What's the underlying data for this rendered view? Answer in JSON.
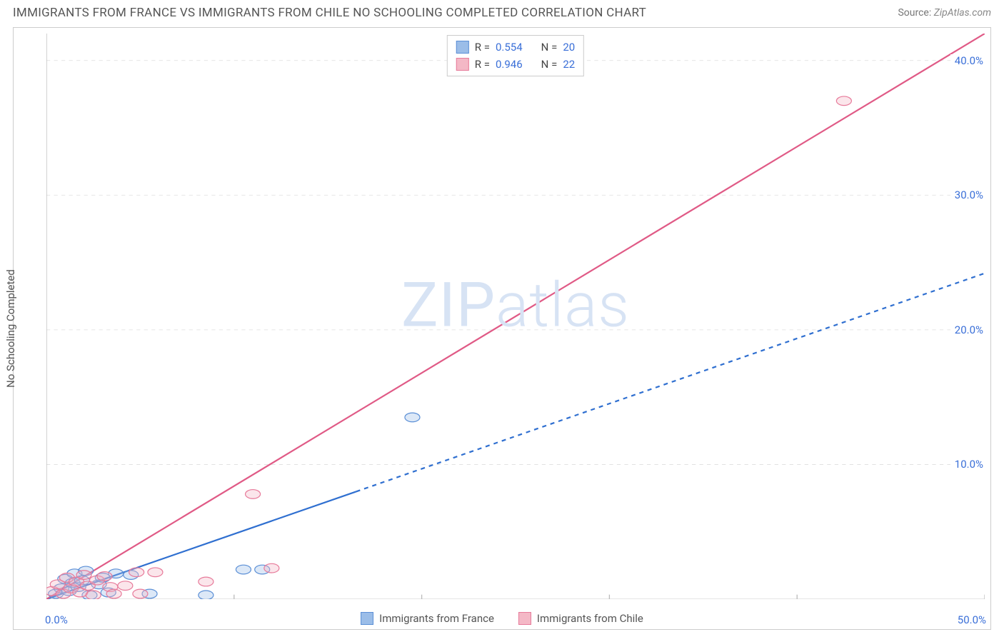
{
  "header": {
    "title": "IMMIGRANTS FROM FRANCE VS IMMIGRANTS FROM CHILE NO SCHOOLING COMPLETED CORRELATION CHART",
    "source_label": "Source:",
    "source_value": "ZipAtlas.com"
  },
  "chart": {
    "type": "scatter",
    "ylabel": "No Schooling Completed",
    "watermark": "ZIPatlas",
    "background_color": "#ffffff",
    "border_color": "#cccccc",
    "grid_color": "#dddddd",
    "grid_dash": "4 4",
    "xlim": [
      0,
      50
    ],
    "ylim": [
      0,
      42
    ],
    "xticks": [
      0,
      10,
      20,
      30,
      40,
      50
    ],
    "xtick_labels_shown": {
      "0": "0.0%",
      "50": "50.0%"
    },
    "yticks": [
      10,
      20,
      30,
      40
    ],
    "ytick_labels": [
      "10.0%",
      "20.0%",
      "30.0%",
      "40.0%"
    ],
    "tick_label_color": "#3a6fd8",
    "tick_fontsize": 15,
    "marker_radius": 8,
    "marker_stroke_width": 1.2,
    "marker_fill_opacity": 0.35,
    "series": [
      {
        "id": "france",
        "label": "Immigrants from France",
        "legend_label": "Immigrants from France",
        "color_fill": "#9bbde8",
        "color_stroke": "#5b8fd6",
        "line_color": "#2f6fd0",
        "line_width": 2.2,
        "line_solid_until_x": 16.5,
        "line_dash_after": "6 6",
        "trend": {
          "x1": 0,
          "y1": 0,
          "x2": 50,
          "y2": 24.2
        },
        "r_label": "R =",
        "r_value": "0.554",
        "n_label": "N =",
        "n_value": "20",
        "points": [
          [
            0.5,
            0.4
          ],
          [
            0.8,
            0.8
          ],
          [
            1.0,
            1.5
          ],
          [
            1.2,
            0.6
          ],
          [
            1.4,
            1.2
          ],
          [
            1.5,
            1.9
          ],
          [
            1.7,
            0.9
          ],
          [
            1.9,
            1.4
          ],
          [
            2.1,
            2.1
          ],
          [
            2.3,
            0.3
          ],
          [
            2.8,
            1.1
          ],
          [
            3.0,
            1.6
          ],
          [
            3.3,
            0.5
          ],
          [
            3.7,
            1.9
          ],
          [
            4.5,
            1.8
          ],
          [
            5.5,
            0.4
          ],
          [
            8.5,
            0.3
          ],
          [
            10.5,
            2.2
          ],
          [
            11.5,
            2.2
          ],
          [
            19.5,
            13.5
          ]
        ]
      },
      {
        "id": "chile",
        "label": "Immigrants from Chile",
        "legend_label": "Immigrants from Chile",
        "color_fill": "#f4b8c6",
        "color_stroke": "#e77a9a",
        "line_color": "#e05a86",
        "line_width": 2.2,
        "line_solid_until_x": 50,
        "line_dash_after": "",
        "trend": {
          "x1": 0,
          "y1": 0,
          "x2": 50,
          "y2": 42
        },
        "r_label": "R =",
        "r_value": "0.946",
        "n_label": "N =",
        "n_value": "22",
        "points": [
          [
            0.3,
            0.6
          ],
          [
            0.6,
            1.1
          ],
          [
            0.9,
            0.4
          ],
          [
            1.1,
            1.6
          ],
          [
            1.3,
            0.8
          ],
          [
            1.6,
            1.3
          ],
          [
            1.8,
            0.5
          ],
          [
            2.0,
            1.8
          ],
          [
            2.2,
            1.0
          ],
          [
            2.5,
            0.3
          ],
          [
            2.7,
            1.4
          ],
          [
            3.1,
            1.7
          ],
          [
            3.4,
            0.9
          ],
          [
            3.6,
            0.4
          ],
          [
            4.2,
            1.0
          ],
          [
            4.8,
            2.0
          ],
          [
            5.0,
            0.4
          ],
          [
            5.8,
            2.0
          ],
          [
            8.5,
            1.3
          ],
          [
            12.0,
            2.3
          ],
          [
            11.0,
            7.8
          ],
          [
            42.5,
            37.0
          ]
        ]
      }
    ]
  }
}
